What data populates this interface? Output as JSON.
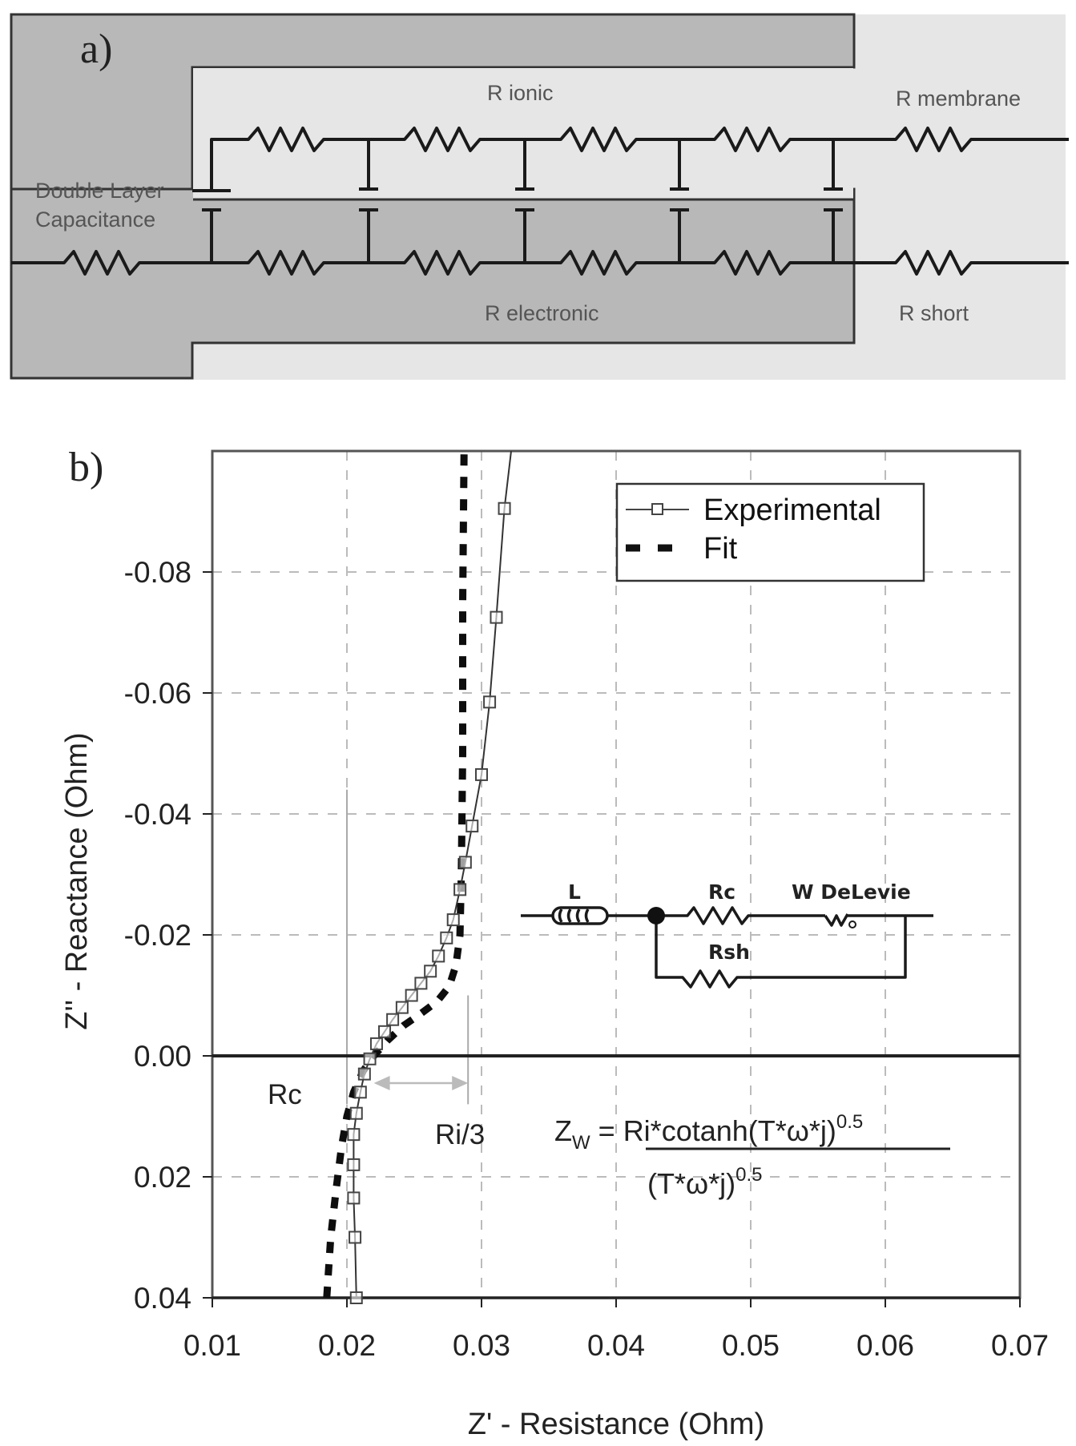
{
  "panel_a": {
    "label": "a)",
    "labels": {
      "r_ionic": "R ionic",
      "r_membrane": "R membrane",
      "double_layer_line1": "Double Layer",
      "double_layer_line2": "Capacitance",
      "r_electronic": "R electronic",
      "r_short": "R short"
    },
    "colors": {
      "dark_region": "#b8b8b8",
      "light_region": "#e6e6e6",
      "wire": "#1a1a1a",
      "label": "#555555"
    }
  },
  "panel_b": {
    "label": "b)",
    "legend": {
      "experimental": "Experimental",
      "fit": "Fit"
    },
    "annotations": {
      "rc": "Rc",
      "ri3": "Ri/3",
      "equation_lhs": "Z",
      "equation_lhs_sub": "W",
      "equation_eq": " = ",
      "equation_numerator": "Ri*cotanh(T*ω*j)",
      "equation_num_exp": "0.5",
      "equation_denominator": "(T*ω*j)",
      "equation_den_exp": "0.5"
    },
    "circuit_inset": {
      "inductor_label": "L",
      "rc_label": "Rc",
      "warburg_label": "W DeLevie",
      "rsh_label": "Rsh"
    }
  },
  "chart_data": {
    "type": "scatter",
    "title": "",
    "xlabel": "Z' - Resistance (Ohm)",
    "ylabel": "Z'' - Reactance (Ohm)",
    "xlim": [
      0.01,
      0.07
    ],
    "ylim": [
      0.04,
      -0.1
    ],
    "y_axis_inverted": true,
    "x_ticks": [
      "0.01",
      "0.02",
      "0.03",
      "0.04",
      "0.05",
      "0.06",
      "0.07"
    ],
    "y_ticks": [
      "-0.08",
      "-0.06",
      "-0.04",
      "-0.02",
      "0.00",
      "0.02",
      "0.04"
    ],
    "y_tick_values": [
      -0.08,
      -0.06,
      -0.04,
      -0.02,
      0.0,
      0.02,
      0.04
    ],
    "x_tick_values": [
      0.01,
      0.02,
      0.03,
      0.04,
      0.05,
      0.06,
      0.07
    ],
    "grid": true,
    "legend_position": "upper right",
    "series": [
      {
        "name": "Experimental",
        "style": "line-with-square-markers",
        "x": [
          0.0207,
          0.0206,
          0.0205,
          0.0205,
          0.0205,
          0.0207,
          0.021,
          0.0213,
          0.0217,
          0.0222,
          0.0228,
          0.0234,
          0.0241,
          0.0248,
          0.0255,
          0.0262,
          0.0268,
          0.0274,
          0.0279,
          0.0284,
          0.0288,
          0.0293,
          0.03,
          0.0306,
          0.0311,
          0.0317,
          0.0322
        ],
        "y": [
          0.04,
          0.03,
          0.0235,
          0.018,
          0.013,
          0.0095,
          0.006,
          0.003,
          0.0005,
          -0.002,
          -0.004,
          -0.006,
          -0.008,
          -0.01,
          -0.012,
          -0.014,
          -0.0165,
          -0.0195,
          -0.0225,
          -0.0275,
          -0.032,
          -0.038,
          -0.0465,
          -0.0585,
          -0.0725,
          -0.0905,
          -0.1
        ]
      },
      {
        "name": "Fit",
        "style": "thick-dashed",
        "x": [
          0.0185,
          0.0188,
          0.0192,
          0.0196,
          0.02,
          0.0205,
          0.0212,
          0.022,
          0.023,
          0.0242,
          0.0255,
          0.0267,
          0.0276,
          0.0281,
          0.0284,
          0.0285,
          0.0286,
          0.0286,
          0.0287
        ],
        "y": [
          0.04,
          0.03,
          0.022,
          0.015,
          0.01,
          0.006,
          0.0025,
          0.0,
          -0.0025,
          -0.005,
          -0.007,
          -0.009,
          -0.0115,
          -0.015,
          -0.02,
          -0.03,
          -0.05,
          -0.075,
          -0.1
        ]
      }
    ],
    "reference_lines": [
      {
        "type": "vertical",
        "x": 0.02,
        "y_from": -0.044,
        "y_to": 0.008,
        "label": "Rc"
      },
      {
        "type": "vertical",
        "x": 0.029,
        "y_from": -0.01,
        "y_to": 0.008,
        "label": "Ri/3"
      },
      {
        "type": "arrow",
        "x_from": 0.022,
        "x_to": 0.029,
        "y": 0.0045
      }
    ]
  }
}
